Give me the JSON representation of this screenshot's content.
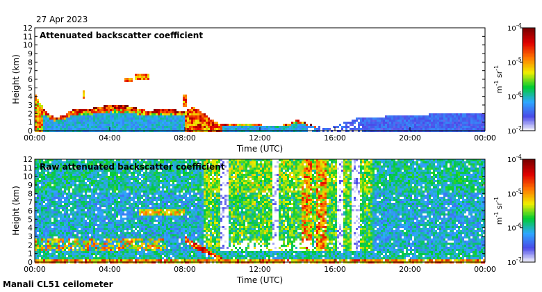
{
  "date": "27 Apr 2023",
  "site_label": "Manali CL51 ceilometer",
  "colors": {
    "frame": "#000000",
    "background": "#ffffff",
    "cmap_stops": [
      "#ffffff",
      "#4a4ae8",
      "#2ea8ff",
      "#00cc33",
      "#f0ee00",
      "#ff7700",
      "#e00000",
      "#7a0000"
    ]
  },
  "chart_data": [
    {
      "type": "heatmap",
      "title": "Attenuated backscatter coefficient",
      "xlabel": "Time (UTC)",
      "ylabel": "Height (km)",
      "xlim": [
        0,
        24
      ],
      "ylim": [
        0,
        12
      ],
      "x_ticks": [
        "00:00",
        "04:00",
        "08:00",
        "12:00",
        "16:00",
        "20:00",
        "00:00"
      ],
      "x_tick_values": [
        0,
        4,
        8,
        12,
        16,
        20,
        24
      ],
      "y_ticks": [
        "0",
        "1",
        "2",
        "3",
        "4",
        "5",
        "6",
        "7",
        "8",
        "9",
        "10",
        "11",
        "12"
      ],
      "colorbar": {
        "scale": "log",
        "range": [
          1e-07,
          0.0001
        ],
        "tick_bases": [
          "10",
          "10",
          "10",
          "10"
        ],
        "tick_exps": [
          "-7",
          "-6",
          "-5",
          "-4"
        ],
        "label_parts": [
          "m",
          "-1",
          "sr",
          "-1"
        ]
      },
      "layer_top_km": [
        [
          0.0,
          4.4
        ],
        [
          0.5,
          2.5
        ],
        [
          1.0,
          1.6
        ],
        [
          1.5,
          1.7
        ],
        [
          2.0,
          2.4
        ],
        [
          3.0,
          2.6
        ],
        [
          3.5,
          2.8
        ],
        [
          4.0,
          3.0
        ],
        [
          5.0,
          2.9
        ],
        [
          5.5,
          2.6
        ],
        [
          6.0,
          2.3
        ],
        [
          7.0,
          2.6
        ],
        [
          7.5,
          2.4
        ],
        [
          8.0,
          2.3
        ],
        [
          8.5,
          2.8
        ],
        [
          9.0,
          2.0
        ],
        [
          9.5,
          1.2
        ],
        [
          10.0,
          0.7
        ],
        [
          10.5,
          0.9
        ],
        [
          11.0,
          0.9
        ],
        [
          12.0,
          0.7
        ],
        [
          13.0,
          0.6
        ],
        [
          13.5,
          0.8
        ],
        [
          14.0,
          1.3
        ],
        [
          14.5,
          0.9
        ],
        [
          15.0,
          0.5
        ],
        [
          16.0,
          0.5
        ],
        [
          17.0,
          1.4
        ],
        [
          18.0,
          1.6
        ],
        [
          20.0,
          1.8
        ],
        [
          22.0,
          2.0
        ],
        [
          24.0,
          2.0
        ]
      ],
      "aerosol_blobs_km": [
        {
          "t": 5.7,
          "h": 6.3,
          "dt": 0.4,
          "dh": 0.4
        },
        {
          "t": 5.0,
          "h": 5.9,
          "dt": 0.2,
          "dh": 0.2
        },
        {
          "t": 2.6,
          "h": 4.2,
          "dt": 0.1,
          "dh": 0.4
        },
        {
          "t": 8.0,
          "h": 3.5,
          "dt": 0.15,
          "dh": 0.8
        }
      ]
    },
    {
      "type": "heatmap",
      "title": "Raw attenuated backscatter coefficient",
      "xlabel": "Time (UTC)",
      "ylabel": "Height (km)",
      "xlim": [
        0,
        24
      ],
      "ylim": [
        0,
        12
      ],
      "x_ticks": [
        "00:00",
        "04:00",
        "08:00",
        "12:00",
        "16:00",
        "20:00",
        "00:00"
      ],
      "x_tick_values": [
        0,
        4,
        8,
        12,
        16,
        20,
        24
      ],
      "y_ticks": [
        "0",
        "1",
        "2",
        "3",
        "4",
        "5",
        "6",
        "7",
        "8",
        "9",
        "10",
        "11",
        "12"
      ],
      "colorbar": {
        "scale": "log",
        "range": [
          1e-07,
          0.0001
        ],
        "tick_bases": [
          "10",
          "10",
          "10",
          "10"
        ],
        "tick_exps": [
          "-7",
          "-6",
          "-5",
          "-4"
        ],
        "label_parts": [
          "m",
          "-1",
          "sr",
          "-1"
        ]
      },
      "clear_streaks_hours": [
        10.1,
        12.8,
        16.3,
        17.1
      ],
      "hot_streaks_hours": [
        14.5,
        15.3
      ],
      "aerosol_layer_km": {
        "from_hour": 5.5,
        "to_hour": 8.0,
        "height": 5.9
      }
    }
  ]
}
